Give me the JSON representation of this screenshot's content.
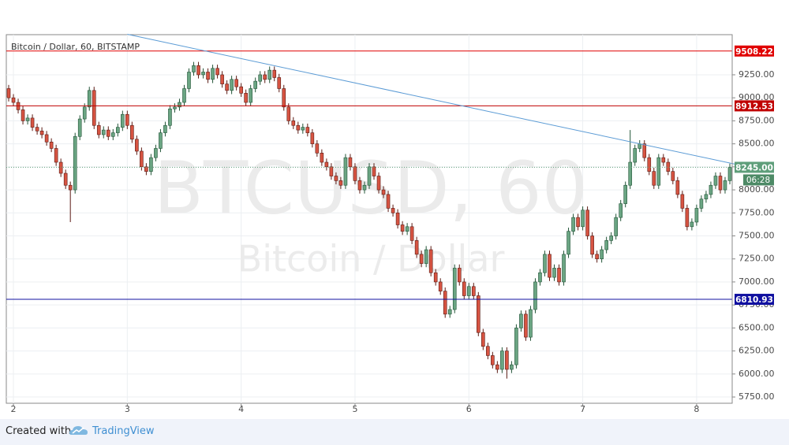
{
  "chart_data": {
    "type": "candlestick",
    "title": "Bitcoin / Dollar, 60, BITSTAMP",
    "watermark": "BTCUSD, 60",
    "watermark_subtitle": "Bitcoin / Dollar",
    "categories": [
      null,
      "2",
      null,
      null,
      null,
      null,
      null,
      null,
      null,
      null,
      null,
      null,
      null,
      null,
      null,
      null,
      null,
      null,
      null,
      null,
      null,
      null,
      null,
      null,
      null,
      "3",
      null,
      null,
      null,
      null,
      null,
      null,
      null,
      null,
      null,
      null,
      null,
      null,
      null,
      null,
      null,
      null,
      null,
      null,
      null,
      null,
      null,
      null,
      null,
      "4",
      null,
      null,
      null,
      null,
      null,
      null,
      null,
      null,
      null,
      null,
      null,
      null,
      null,
      null,
      null,
      null,
      null,
      null,
      null,
      null,
      null,
      null,
      null,
      "5",
      null,
      null,
      null,
      null,
      null,
      null,
      null,
      null,
      null,
      null,
      null,
      null,
      null,
      null,
      null,
      null,
      null,
      null,
      null,
      null,
      null,
      null,
      null,
      "6",
      null,
      null,
      null,
      null,
      null,
      null,
      null,
      null,
      null,
      null,
      null,
      null,
      null,
      null,
      null,
      null,
      null,
      null,
      null,
      null,
      null,
      null,
      null,
      "7",
      null,
      null,
      null,
      null,
      null,
      null,
      null,
      null,
      null,
      null,
      null,
      null,
      null,
      null,
      null,
      null,
      null,
      null,
      null,
      null,
      null,
      null,
      null,
      "8",
      null,
      null,
      null,
      null,
      null,
      null,
      null
    ],
    "open": [
      9100,
      9000,
      8950,
      8870,
      8750,
      8780,
      8680,
      8640,
      8600,
      8520,
      8450,
      8300,
      8180,
      8050,
      8000,
      8580,
      8770,
      8900,
      9080,
      8700,
      8600,
      8650,
      8580,
      8620,
      8680,
      8820,
      8700,
      8550,
      8420,
      8250,
      8200,
      8350,
      8450,
      8620,
      8700,
      8880,
      8900,
      8950,
      9100,
      9280,
      9350,
      9250,
      9280,
      9200,
      9320,
      9250,
      9150,
      9080,
      9200,
      9120,
      9050,
      8950,
      9100,
      9180,
      9250,
      9200,
      9300,
      9220,
      9100,
      8900,
      8750,
      8700,
      8650,
      8680,
      8620,
      8500,
      8400,
      8300,
      8250,
      8150,
      8100,
      8050,
      8350,
      8250,
      8100,
      8000,
      8050,
      8250,
      8150,
      8000,
      7950,
      7800,
      7750,
      7620,
      7550,
      7600,
      7450,
      7300,
      7200,
      7350,
      7100,
      7000,
      6900,
      6650,
      6700,
      7150,
      7000,
      6850,
      6950,
      6850,
      6450,
      6300,
      6200,
      6100,
      6050,
      6250,
      6050,
      6100,
      6500,
      6650,
      6400,
      6700,
      7000,
      7100,
      7300,
      7050,
      7150,
      7000,
      7300,
      7550,
      7700,
      7600,
      7780,
      7500,
      7300,
      7250,
      7350,
      7450,
      7500,
      7700,
      7850,
      8050,
      8300,
      8450,
      8500,
      8350,
      8200,
      8050,
      8350,
      8300,
      8200,
      8100,
      7950,
      7800,
      7600,
      7650,
      7800,
      7900,
      7950,
      8050,
      8150,
      8000,
      8100
    ],
    "high": [
      9140,
      9040,
      8990,
      8910,
      8820,
      8820,
      8720,
      8680,
      8640,
      8560,
      8490,
      8340,
      8220,
      8090,
      8620,
      8810,
      8940,
      9120,
      9120,
      8740,
      8690,
      8690,
      8660,
      8720,
      8860,
      8860,
      8740,
      8590,
      8460,
      8290,
      8390,
      8490,
      8660,
      8740,
      8920,
      8940,
      8990,
      9140,
      9320,
      9390,
      9390,
      9320,
      9320,
      9360,
      9360,
      9290,
      9190,
      9240,
      9240,
      9160,
      9090,
      9140,
      9220,
      9290,
      9290,
      9340,
      9340,
      9260,
      9140,
      8940,
      8790,
      8740,
      8720,
      8720,
      8660,
      8540,
      8440,
      8340,
      8290,
      8190,
      8140,
      8390,
      8390,
      8290,
      8140,
      8090,
      8290,
      8290,
      8190,
      8040,
      7990,
      7840,
      7790,
      7660,
      7640,
      7640,
      7490,
      7340,
      7390,
      7390,
      7140,
      7040,
      6940,
      6740,
      7190,
      7190,
      7040,
      6990,
      6990,
      6890,
      6490,
      6340,
      6240,
      6140,
      6290,
      6290,
      6140,
      6540,
      6690,
      6690,
      6740,
      7040,
      7140,
      7340,
      7340,
      7190,
      7190,
      7340,
      7590,
      7740,
      7740,
      7820,
      7820,
      7540,
      7340,
      7390,
      7490,
      7540,
      7740,
      7890,
      8090,
      8650,
      8490,
      8540,
      8540,
      8390,
      8240,
      8390,
      8390,
      8340,
      8240,
      8140,
      7990,
      7840,
      7690,
      7840,
      7940,
      7990,
      8090,
      8190,
      8190,
      8140,
      8285
    ],
    "low": [
      8960,
      8910,
      8830,
      8710,
      8710,
      8640,
      8600,
      8560,
      8480,
      8410,
      8260,
      8140,
      8010,
      7650,
      7960,
      8540,
      8730,
      8860,
      8660,
      8560,
      8560,
      8540,
      8540,
      8580,
      8640,
      8660,
      8510,
      8380,
      8210,
      8160,
      8160,
      8310,
      8410,
      8580,
      8660,
      8840,
      8860,
      8910,
      9060,
      9240,
      9210,
      9210,
      9160,
      9160,
      9210,
      9110,
      9040,
      9040,
      9080,
      9010,
      8910,
      8910,
      9060,
      9140,
      9160,
      9160,
      9180,
      9060,
      8860,
      8710,
      8660,
      8610,
      8610,
      8580,
      8460,
      8360,
      8260,
      8210,
      8110,
      8060,
      8010,
      8010,
      8210,
      8060,
      7960,
      7960,
      8010,
      8110,
      7960,
      7910,
      7760,
      7710,
      7580,
      7510,
      7510,
      7410,
      7260,
      7160,
      7160,
      7060,
      6960,
      6860,
      6610,
      6610,
      6660,
      6960,
      6810,
      6810,
      6810,
      6410,
      6260,
      6160,
      6060,
      6010,
      6010,
      5950,
      6010,
      6060,
      6460,
      6360,
      6360,
      6660,
      6960,
      7060,
      7010,
      7010,
      6960,
      6960,
      7260,
      7510,
      7560,
      7560,
      7460,
      7260,
      7210,
      7210,
      7310,
      7410,
      7460,
      7660,
      7810,
      8010,
      8260,
      8410,
      8310,
      8160,
      8010,
      8010,
      8260,
      8160,
      8060,
      7910,
      7760,
      7560,
      7560,
      7610,
      7760,
      7860,
      7910,
      8010,
      7960,
      7960,
      8060
    ],
    "close": [
      9000,
      8950,
      8870,
      8750,
      8780,
      8680,
      8640,
      8600,
      8520,
      8450,
      8300,
      8180,
      8050,
      8000,
      8580,
      8770,
      8900,
      9080,
      8700,
      8600,
      8650,
      8580,
      8620,
      8680,
      8820,
      8700,
      8550,
      8420,
      8250,
      8200,
      8350,
      8450,
      8620,
      8700,
      8880,
      8900,
      8950,
      9100,
      9280,
      9350,
      9250,
      9280,
      9200,
      9320,
      9250,
      9150,
      9080,
      9200,
      9120,
      9050,
      8950,
      9100,
      9180,
      9250,
      9200,
      9300,
      9220,
      9100,
      8900,
      8750,
      8700,
      8650,
      8680,
      8620,
      8500,
      8400,
      8300,
      8250,
      8150,
      8100,
      8050,
      8350,
      8250,
      8100,
      8000,
      8050,
      8250,
      8150,
      8000,
      7950,
      7800,
      7750,
      7620,
      7550,
      7600,
      7450,
      7300,
      7200,
      7350,
      7100,
      7000,
      6900,
      6650,
      6700,
      7150,
      7000,
      6850,
      6950,
      6850,
      6450,
      6300,
      6200,
      6100,
      6050,
      6250,
      6050,
      6100,
      6500,
      6650,
      6400,
      6700,
      7000,
      7100,
      7300,
      7050,
      7150,
      7000,
      7300,
      7550,
      7700,
      7600,
      7780,
      7500,
      7300,
      7250,
      7350,
      7450,
      7500,
      7700,
      7850,
      8050,
      8300,
      8450,
      8500,
      8350,
      8200,
      8050,
      8350,
      8300,
      8200,
      8100,
      7950,
      7800,
      7600,
      7650,
      7800,
      7900,
      7950,
      8050,
      8150,
      8000,
      8100,
      8245
    ],
    "up_color": "#6ba583",
    "down_color": "#d75442",
    "ylim": [
      5682,
      9686
    ],
    "yticks": [
      {
        "value": 5750,
        "label": "5750.00"
      },
      {
        "value": 6000,
        "label": "6000.00"
      },
      {
        "value": 6250,
        "label": "6250.00"
      },
      {
        "value": 6500,
        "label": "6500.00"
      },
      {
        "value": 6750,
        "label": "6750.00"
      },
      {
        "value": 7000,
        "label": "7000.00"
      },
      {
        "value": 7250,
        "label": "7250.00"
      },
      {
        "value": 7500,
        "label": "7500.00"
      },
      {
        "value": 7750,
        "label": "7750.00"
      },
      {
        "value": 8000,
        "label": "8000.00"
      },
      {
        "value": 8250,
        "label": "8250.00"
      },
      {
        "value": 8500,
        "label": "8500.00"
      },
      {
        "value": 8750,
        "label": "8750.00"
      },
      {
        "value": 9000,
        "label": "9000.00"
      },
      {
        "value": 9250,
        "label": "9250.00"
      }
    ],
    "grid": true,
    "levels": [
      {
        "value": 9508.22,
        "color": "#e00000"
      },
      {
        "value": 8912.53,
        "color": "#c00000"
      },
      {
        "value": 6810.93,
        "color": "#1010a0"
      }
    ],
    "last_price": {
      "value": 8245,
      "label": "8245.00",
      "color": "#5e9e7a"
    },
    "countdown": "06:28",
    "trend_line": {
      "x": [
        3.0,
        8.45
      ],
      "values": [
        9690,
        8250
      ],
      "color": "#5b9bd5"
    }
  },
  "footer": {
    "created_with": "Created with",
    "brand": "TradingView"
  }
}
